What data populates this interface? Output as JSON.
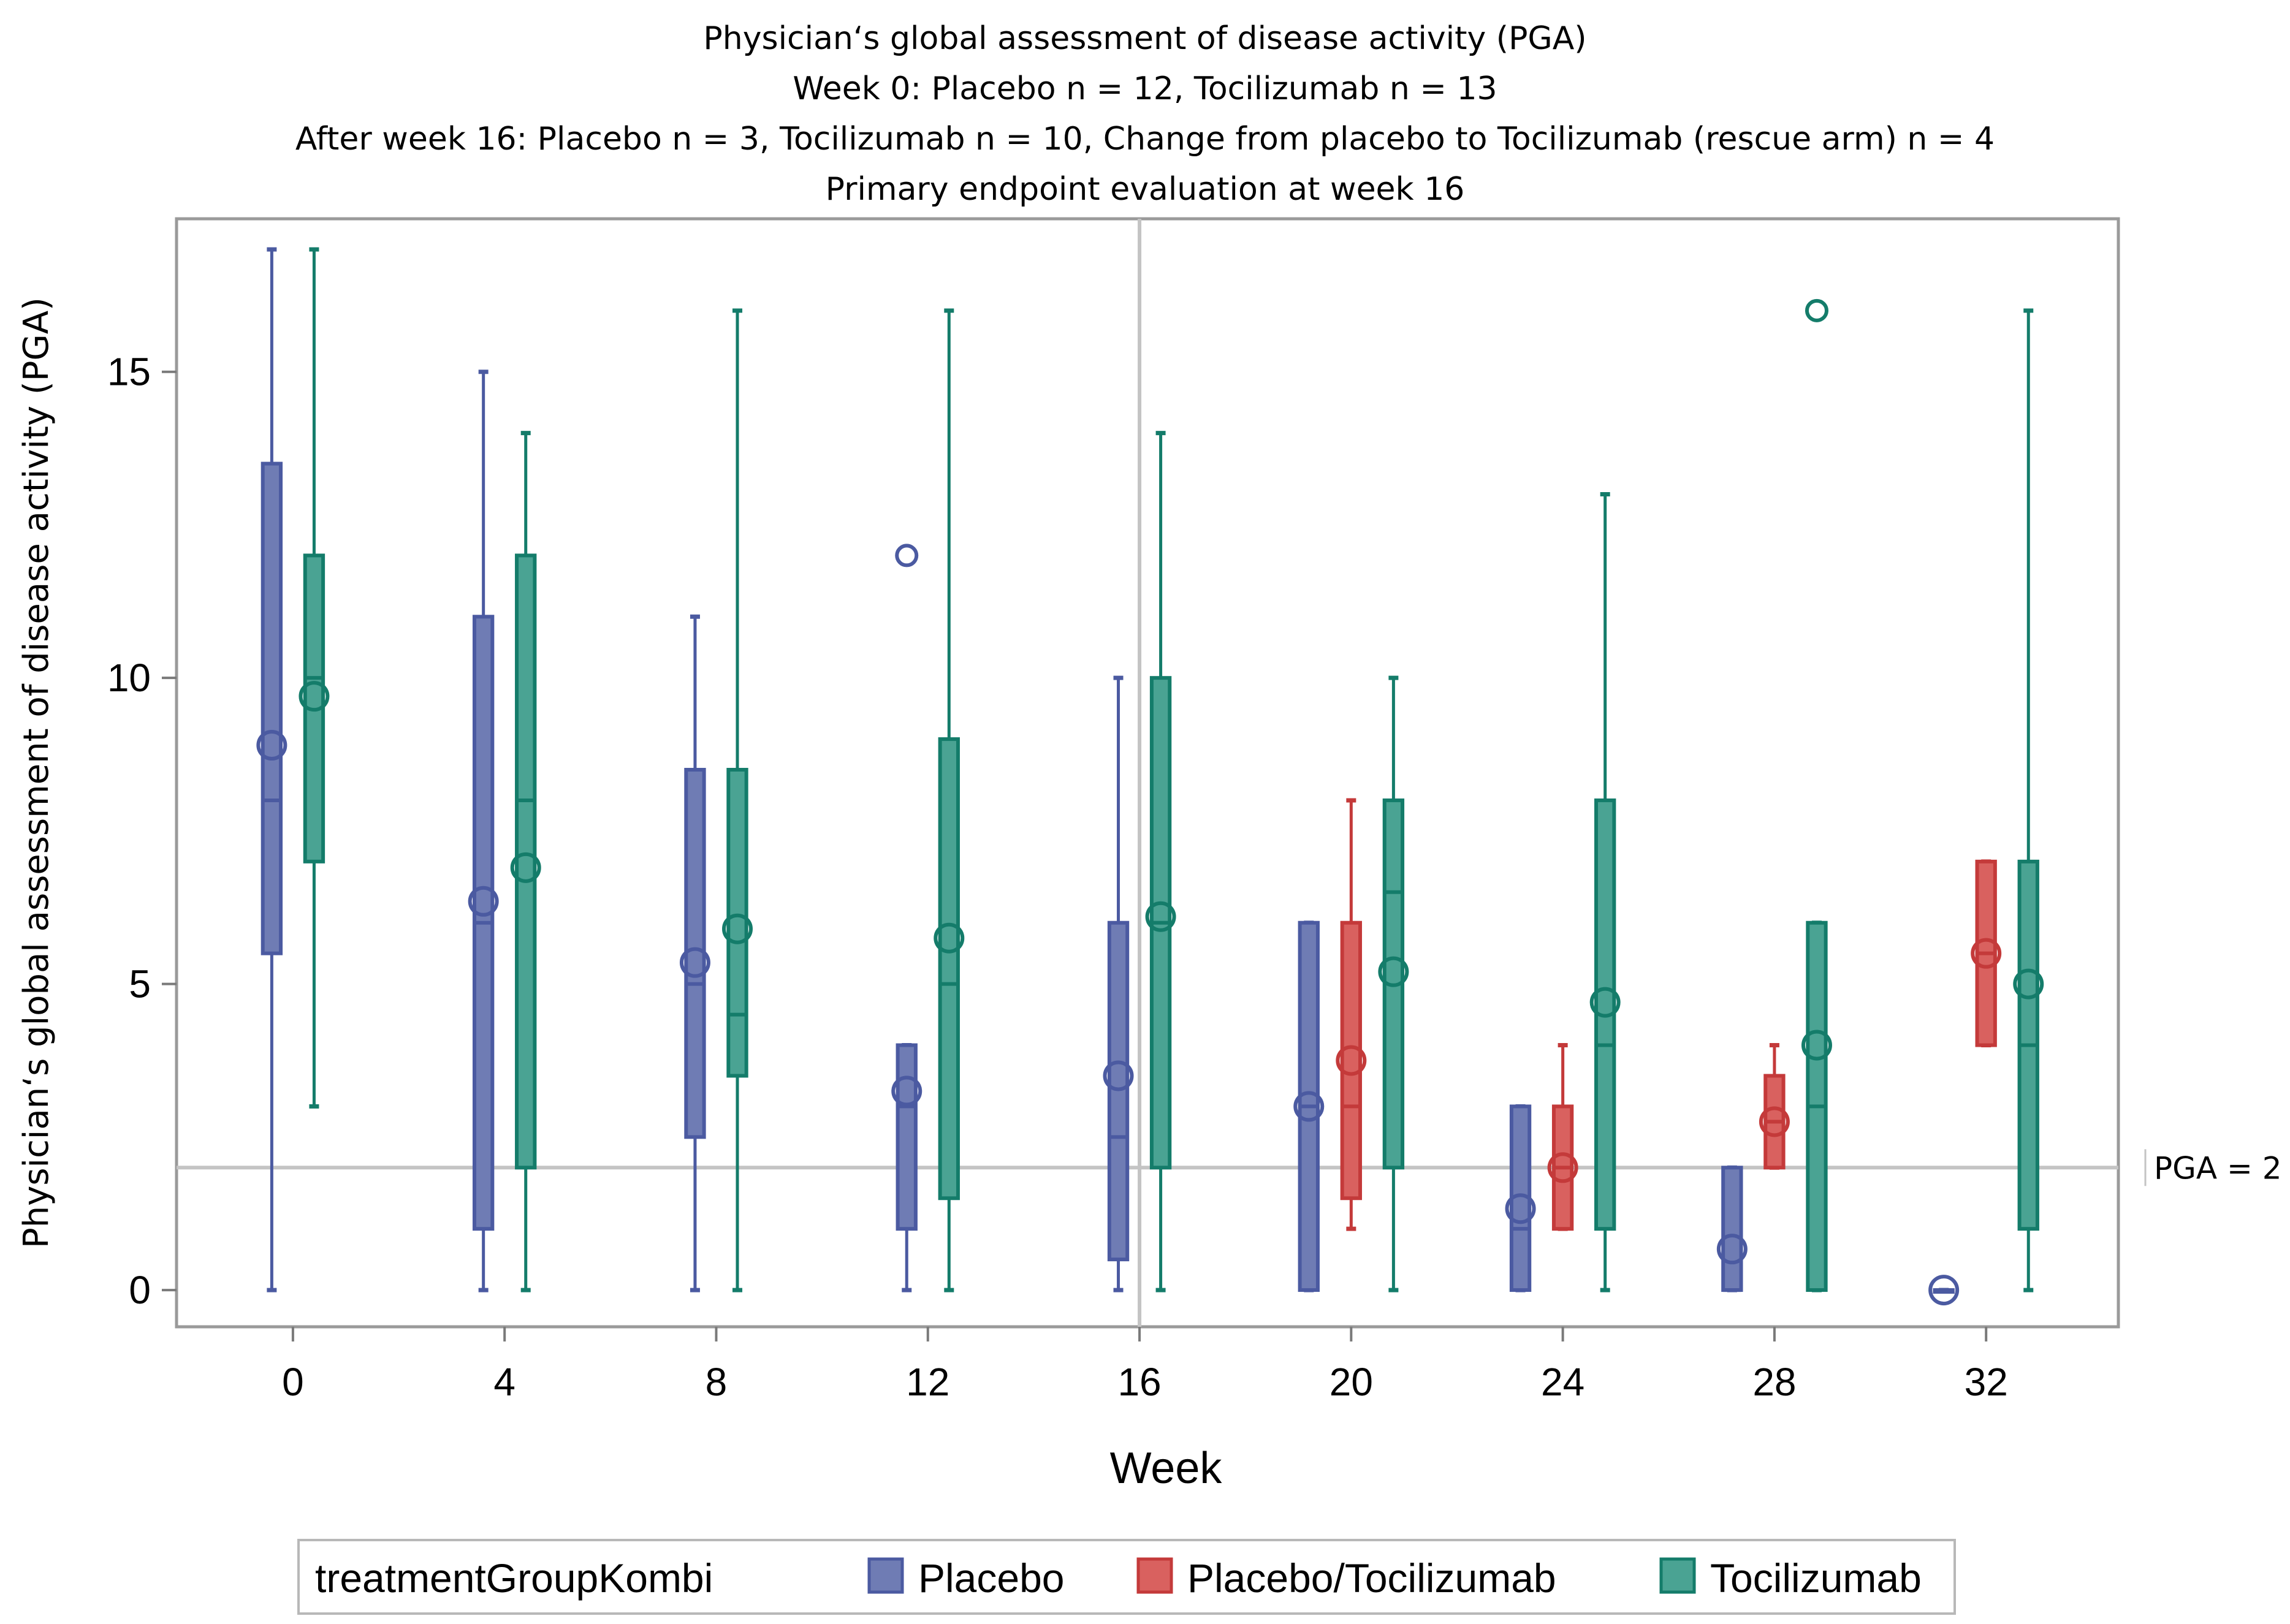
{
  "chart_data": {
    "type": "box",
    "title_lines": [
      "Physician‘s global assessment of disease activity (PGA)",
      "Week 0: Placebo n = 12, Tocilizumab n = 13",
      "After week 16: Placebo n = 3, Tocilizumab n = 10, Change from placebo to Tocilizumab (rescue arm) n = 4",
      "Primary endpoint evaluation at week 16"
    ],
    "xlabel": "Week",
    "ylabel": "Physician‘s global assessment of disease activity (PGA)",
    "x_ticks": [
      0,
      4,
      8,
      12,
      16,
      20,
      24,
      28,
      32
    ],
    "y_ticks": [
      0,
      5,
      10,
      15
    ],
    "xlim": [
      -2.2,
      34.5
    ],
    "ylim": [
      -0.6,
      17.5
    ],
    "primary_endpoint_week": 16,
    "reference_line": {
      "value": 2,
      "label": "PGA = 2"
    },
    "legend": {
      "title": "treatmentGroupKombi",
      "entries": [
        {
          "name": "Placebo",
          "fill": "#6f7cb4",
          "stroke": "#4b5aa1"
        },
        {
          "name": "Placebo/Tocilizumab",
          "fill": "#d9615f",
          "stroke": "#c43a3a"
        },
        {
          "name": "Tocilizumab",
          "fill": "#4aa393",
          "stroke": "#147c6a"
        }
      ]
    },
    "series": [
      {
        "name": "Placebo",
        "boxes": [
          {
            "week": 0,
            "x": 0,
            "min": 0,
            "q1": 5.5,
            "median": 8,
            "q3": 13.5,
            "max": 17,
            "mean": 8.9,
            "outliers": []
          },
          {
            "week": 4,
            "x": 4,
            "min": 0,
            "q1": 1,
            "median": 6,
            "q3": 11,
            "max": 15,
            "mean": 6.35,
            "outliers": []
          },
          {
            "week": 8,
            "x": 8,
            "min": 0,
            "q1": 2.5,
            "median": 5,
            "q3": 8.5,
            "max": 11,
            "mean": 5.35,
            "outliers": []
          },
          {
            "week": 12,
            "x": 12,
            "min": 0,
            "q1": 1,
            "median": 3,
            "q3": 4,
            "max": 4,
            "mean": 3.25,
            "outliers": [
              12
            ]
          },
          {
            "week": 16,
            "x": 16,
            "min": 0,
            "q1": 0.5,
            "median": 2.5,
            "q3": 6,
            "max": 10,
            "mean": 3.5,
            "outliers": []
          },
          {
            "week": 20,
            "x": 20,
            "min": 0,
            "q1": 0,
            "median": 3,
            "q3": 6,
            "max": 6,
            "mean": 3,
            "outliers": []
          },
          {
            "week": 24,
            "x": 24,
            "min": 0,
            "q1": 0,
            "median": 1,
            "q3": 3,
            "max": 3,
            "mean": 1.33,
            "outliers": []
          },
          {
            "week": 28,
            "x": 28,
            "min": 0,
            "q1": 0,
            "median": 0,
            "q3": 2,
            "max": 2,
            "mean": 0.67,
            "outliers": []
          },
          {
            "week": 32,
            "x": 32,
            "min": 0,
            "q1": 0,
            "median": 0,
            "q3": 0,
            "max": 0,
            "mean": 0,
            "outliers": []
          }
        ]
      },
      {
        "name": "Placebo/Tocilizumab",
        "boxes": [
          {
            "week": 20,
            "x": 20,
            "min": 1,
            "q1": 1.5,
            "median": 3,
            "q3": 6,
            "max": 8,
            "mean": 3.75,
            "outliers": []
          },
          {
            "week": 24,
            "x": 24,
            "min": 1,
            "q1": 1,
            "median": 2,
            "q3": 3,
            "max": 4,
            "mean": 2,
            "outliers": []
          },
          {
            "week": 28,
            "x": 28,
            "min": 2,
            "q1": 2,
            "median": 2.75,
            "q3": 3.5,
            "max": 4,
            "mean": 2.75,
            "outliers": []
          },
          {
            "week": 32,
            "x": 32,
            "min": 4,
            "q1": 4,
            "median": 5.5,
            "q3": 7,
            "max": 7,
            "mean": 5.5,
            "outliers": []
          }
        ]
      },
      {
        "name": "Tocilizumab",
        "boxes": [
          {
            "week": 0,
            "x": 0,
            "min": 3,
            "q1": 7,
            "median": 10,
            "q3": 12,
            "max": 17,
            "mean": 9.7,
            "outliers": []
          },
          {
            "week": 4,
            "x": 4,
            "min": 0,
            "q1": 2,
            "median": 8,
            "q3": 12,
            "max": 14,
            "mean": 6.9,
            "outliers": []
          },
          {
            "week": 8,
            "x": 8,
            "min": 0,
            "q1": 3.5,
            "median": 4.5,
            "q3": 8.5,
            "max": 16,
            "mean": 5.9,
            "outliers": []
          },
          {
            "week": 12,
            "x": 12,
            "min": 0,
            "q1": 1.5,
            "median": 5,
            "q3": 9,
            "max": 16,
            "mean": 5.75,
            "outliers": []
          },
          {
            "week": 16,
            "x": 16,
            "min": 0,
            "q1": 2,
            "median": 6,
            "q3": 10,
            "max": 14,
            "mean": 6.1,
            "outliers": []
          },
          {
            "week": 20,
            "x": 20,
            "min": 0,
            "q1": 2,
            "median": 6.5,
            "q3": 8,
            "max": 10,
            "mean": 5.2,
            "outliers": []
          },
          {
            "week": 24,
            "x": 24,
            "min": 0,
            "q1": 1,
            "median": 4,
            "q3": 8,
            "max": 13,
            "mean": 4.7,
            "outliers": []
          },
          {
            "week": 28,
            "x": 28,
            "min": 0,
            "q1": 0,
            "median": 3,
            "q3": 6,
            "max": 6,
            "mean": 4,
            "outliers": [
              16
            ]
          },
          {
            "week": 32,
            "x": 32,
            "min": 0,
            "q1": 1,
            "median": 4,
            "q3": 7,
            "max": 16,
            "mean": 5,
            "outliers": []
          }
        ]
      }
    ]
  }
}
